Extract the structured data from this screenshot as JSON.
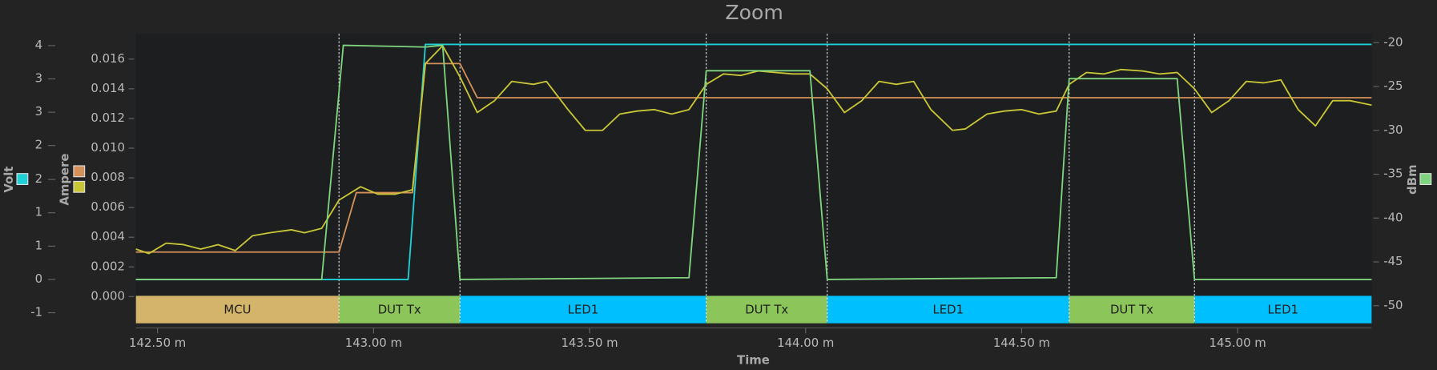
{
  "chart_data": {
    "type": "line",
    "title": "Zoom",
    "xlabel": "Time",
    "ylabel": "Volt",
    "y2label": "Ampere",
    "y3label": "dBm",
    "xlim": [
      142.45,
      145.31
    ],
    "xticks": [
      {
        "value": 142.5,
        "label": "142.50 m"
      },
      {
        "value": 143.0,
        "label": "143.00 m"
      },
      {
        "value": 143.5,
        "label": "143.50 m"
      },
      {
        "value": 144.0,
        "label": "144.00 m"
      },
      {
        "value": 144.5,
        "label": "144.50 m"
      },
      {
        "value": 145.0,
        "label": "145.00 m"
      }
    ],
    "ylim": [
      -0.75,
      4.2
    ],
    "yticks": [
      4,
      {
        "value": 3.43,
        "label": "3"
      },
      {
        "value": 2.86,
        "label": "3"
      },
      {
        "value": 2.29,
        "label": "2"
      },
      {
        "value": 1.71,
        "label": "2"
      },
      {
        "value": 1.14,
        "label": "1"
      },
      {
        "value": 0.57,
        "label": "1"
      },
      0,
      {
        "value": -0.57,
        "label": "-1"
      }
    ],
    "y2lim": [
      -0.0018,
      0.0177
    ],
    "y2ticks": [
      0.016,
      0.014,
      0.012,
      {
        "value": 0.01,
        "label": "0.010"
      },
      0.008,
      0.006,
      0.004,
      0.002,
      {
        "value": 0,
        "label": "0.000"
      }
    ],
    "y3lim": [
      -52,
      -19
    ],
    "y3ticks": [
      -20,
      -25,
      -30,
      -35,
      -40,
      -45,
      -50
    ],
    "series": [
      {
        "color": "#1fd1d6",
        "axis": "y",
        "x": [
          142.45,
          143.08,
          143.12,
          145.31
        ],
        "values": [
          0.0,
          0.0,
          4.02,
          4.02
        ]
      },
      {
        "color": "#d4925a",
        "axis": "y2",
        "x": [
          142.45,
          142.92,
          142.96,
          143.09,
          143.12,
          143.2,
          143.24,
          145.31
        ],
        "values": [
          0.003,
          0.003,
          0.007,
          0.007,
          0.0157,
          0.0157,
          0.0134,
          0.0134
        ]
      },
      {
        "color": "#c9c636",
        "axis": "y2",
        "x": [
          142.45,
          142.48,
          142.52,
          142.56,
          142.6,
          142.64,
          142.68,
          142.72,
          142.76,
          142.81,
          142.84,
          142.88,
          142.92,
          142.97,
          143.01,
          143.05,
          143.09,
          143.12,
          143.16,
          143.2,
          143.24,
          143.28,
          143.32,
          143.37,
          143.4,
          143.45,
          143.49,
          143.53,
          143.57,
          143.61,
          143.65,
          143.69,
          143.73,
          143.77,
          143.81,
          143.85,
          143.89,
          143.93,
          143.97,
          144.01,
          144.05,
          144.09,
          144.13,
          144.17,
          144.21,
          144.25,
          144.29,
          144.34,
          144.37,
          144.42,
          144.46,
          144.5,
          144.54,
          144.58,
          144.61,
          144.65,
          144.69,
          144.73,
          144.78,
          144.82,
          144.86,
          144.9,
          144.94,
          144.98,
          145.02,
          145.06,
          145.1,
          145.14,
          145.18,
          145.22,
          145.26,
          145.31
        ],
        "values": [
          0.0032,
          0.0029,
          0.0036,
          0.0035,
          0.0032,
          0.0035,
          0.0031,
          0.0041,
          0.0043,
          0.0045,
          0.0043,
          0.0046,
          0.0065,
          0.0074,
          0.0069,
          0.0069,
          0.0072,
          0.0157,
          0.0169,
          0.0148,
          0.0124,
          0.0132,
          0.0145,
          0.0143,
          0.0145,
          0.0126,
          0.0112,
          0.0112,
          0.0123,
          0.0125,
          0.0126,
          0.0123,
          0.0126,
          0.0143,
          0.015,
          0.0149,
          0.0152,
          0.0151,
          0.015,
          0.015,
          0.014,
          0.0124,
          0.0132,
          0.0145,
          0.0143,
          0.0145,
          0.0126,
          0.0112,
          0.0113,
          0.0123,
          0.0125,
          0.0126,
          0.0123,
          0.0125,
          0.0143,
          0.0151,
          0.015,
          0.0153,
          0.0152,
          0.015,
          0.0151,
          0.014,
          0.0124,
          0.0132,
          0.0145,
          0.0144,
          0.0146,
          0.0126,
          0.0115,
          0.0132,
          0.0132,
          0.0129
        ]
      },
      {
        "color": "#7fd47f",
        "axis": "y3",
        "x": [
          142.45,
          142.88,
          142.93,
          143.12,
          143.16,
          143.2,
          143.73,
          143.77,
          144.01,
          144.05,
          144.58,
          144.61,
          144.86,
          144.9,
          145.31
        ],
        "values": [
          -47.0,
          -47.0,
          -20.3,
          -20.5,
          -20.3,
          -47.0,
          -46.8,
          -23.2,
          -23.2,
          -47.0,
          -46.8,
          -24.1,
          -24.1,
          -47.0,
          -47.0
        ]
      }
    ],
    "segments": [
      {
        "label": "MCU",
        "start": 142.45,
        "end": 142.92,
        "color": "#d4b46a"
      },
      {
        "label": "DUT Tx",
        "start": 142.92,
        "end": 143.2,
        "color": "#8cc65a"
      },
      {
        "label": "LED1",
        "start": 143.2,
        "end": 143.77,
        "color": "#00bfff"
      },
      {
        "label": "DUT Tx",
        "start": 143.77,
        "end": 144.05,
        "color": "#8cc65a"
      },
      {
        "label": "LED1",
        "start": 144.05,
        "end": 144.61,
        "color": "#00bfff"
      },
      {
        "label": "DUT Tx",
        "start": 144.61,
        "end": 144.9,
        "color": "#8cc65a"
      },
      {
        "label": "LED1",
        "start": 144.9,
        "end": 145.31,
        "color": "#00bfff"
      }
    ]
  }
}
